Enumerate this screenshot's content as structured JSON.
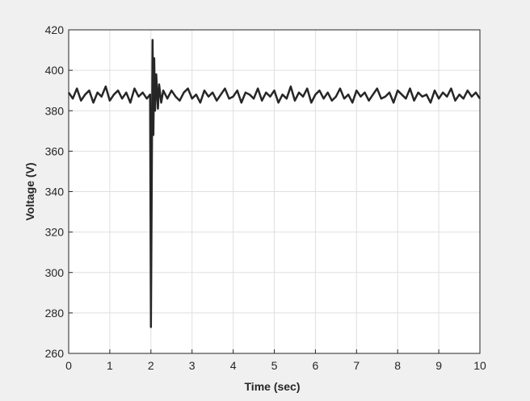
{
  "chart_data": {
    "type": "line",
    "xlabel": "Time (sec)",
    "ylabel": "Voltage (V)",
    "x": [
      0,
      0.1,
      0.2,
      0.3,
      0.4,
      0.5,
      0.6,
      0.7,
      0.8,
      0.9,
      1,
      1.1,
      1.2,
      1.3,
      1.4,
      1.5,
      1.6,
      1.7,
      1.8,
      1.9,
      1.98,
      2,
      2.04,
      2.06,
      2.08,
      2.1,
      2.13,
      2.17,
      2.2,
      2.25,
      2.3,
      2.4,
      2.5,
      2.6,
      2.7,
      2.8,
      2.9,
      3,
      3.1,
      3.2,
      3.3,
      3.4,
      3.5,
      3.6,
      3.7,
      3.8,
      3.9,
      4,
      4.1,
      4.2,
      4.3,
      4.4,
      4.5,
      4.6,
      4.7,
      4.8,
      4.9,
      5,
      5.1,
      5.2,
      5.3,
      5.4,
      5.5,
      5.6,
      5.7,
      5.8,
      5.9,
      6,
      6.1,
      6.2,
      6.3,
      6.4,
      6.5,
      6.6,
      6.7,
      6.8,
      6.9,
      7,
      7.1,
      7.2,
      7.3,
      7.4,
      7.5,
      7.6,
      7.7,
      7.8,
      7.9,
      8,
      8.1,
      8.2,
      8.3,
      8.4,
      8.5,
      8.6,
      8.7,
      8.8,
      8.9,
      9,
      9.1,
      9.2,
      9.3,
      9.4,
      9.5,
      9.6,
      9.7,
      9.8,
      9.9,
      10
    ],
    "values": [
      389,
      386,
      391,
      385,
      388,
      390,
      384,
      389,
      387,
      392,
      385,
      388,
      390,
      386,
      389,
      384,
      391,
      387,
      389,
      386,
      388,
      273,
      415,
      368,
      406,
      380,
      398,
      381,
      393,
      384,
      390,
      386,
      390,
      387,
      385,
      389,
      391,
      386,
      388,
      384,
      390,
      387,
      389,
      385,
      388,
      391,
      386,
      387,
      390,
      384,
      389,
      388,
      386,
      391,
      385,
      389,
      387,
      390,
      384,
      388,
      386,
      392,
      385,
      389,
      387,
      391,
      384,
      388,
      390,
      386,
      389,
      385,
      387,
      391,
      386,
      388,
      384,
      390,
      387,
      389,
      385,
      388,
      391,
      386,
      387,
      389,
      384,
      390,
      388,
      386,
      391,
      385,
      389,
      387,
      388,
      384,
      390,
      386,
      389,
      387,
      391,
      385,
      388,
      386,
      390,
      387,
      389,
      386
    ],
    "color": "#262626",
    "xlim": [
      0,
      10
    ],
    "ylim": [
      260,
      420
    ],
    "xticks": [
      0,
      1,
      2,
      3,
      4,
      5,
      6,
      7,
      8,
      9,
      10
    ],
    "yticks": [
      260,
      280,
      300,
      320,
      340,
      360,
      380,
      400,
      420
    ],
    "grid": true
  }
}
